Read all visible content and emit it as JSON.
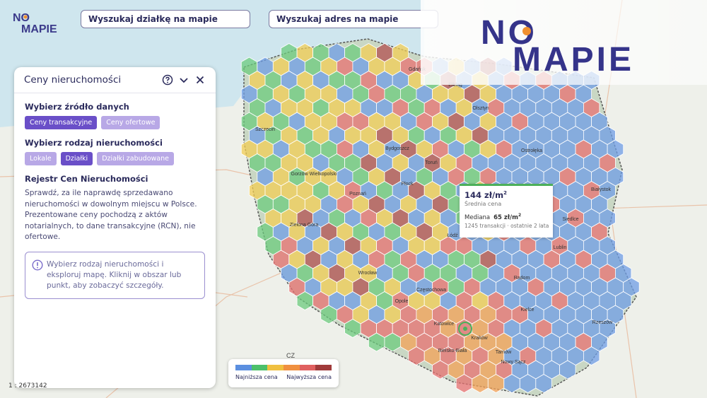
{
  "top_bar": {
    "search_plot_placeholder": "Wyszukaj działkę na mapie",
    "search_address_placeholder": "Wyszukaj adres na mapie"
  },
  "brand": {
    "logo_text_top": "NO",
    "logo_text_bottom": "MAPIE"
  },
  "panel": {
    "title": "Ceny nieruchomości",
    "source_title": "Wybierz źródło danych",
    "source_options": [
      {
        "label": "Ceny transakcyjne",
        "active": true
      },
      {
        "label": "Ceny ofertowe",
        "active": false
      }
    ],
    "type_title": "Wybierz rodzaj nieruchomości",
    "type_options": [
      {
        "label": "Lokale",
        "active": false
      },
      {
        "label": "Działki",
        "active": true
      },
      {
        "label": "Działki zabudowane",
        "active": false
      }
    ],
    "registry_title": "Rejestr Cen Nieruchomości",
    "registry_text": "Sprawdź, za ile naprawdę sprzedawano nieruchomości w dowolnym miejscu w Polsce. Prezentowane ceny pochodzą z aktów notarialnych, to dane transakcyjne (RCN), nie ofertowe.",
    "info_text": "Wybierz rodzaj nieruchomości i eksploruj mapę. Kliknij w obszar lub punkt, aby zobaczyć szczegóły."
  },
  "tooltip": {
    "price": "144 zł/m",
    "price_sup": "2",
    "price_label": "Średnia cena",
    "median_label": "Mediana",
    "median_value": "65 zł/m",
    "median_sup": "2",
    "transactions": "1245 transakcji · ostatnie 2 lata"
  },
  "legend": {
    "low_label": "Najniższa cena",
    "high_label": "Najwyższa cena",
    "colors": [
      "#5b8fe0",
      "#4cc06a",
      "#f0c040",
      "#f09040",
      "#e06060",
      "#a03a3a"
    ]
  },
  "map": {
    "scale_text": "1 : 2673142",
    "country_label": "CZ",
    "cities": [
      "Gdańsk",
      "Olsztyn",
      "Szczecin",
      "Bydgoszcz",
      "Toruń",
      "Ostrołęka",
      "Gorzów Wielkopolski",
      "Poznań",
      "Białystok",
      "Zielona Góra",
      "Łódź",
      "Lublin",
      "Wrocław",
      "Opole",
      "Kielce",
      "Częstochowa",
      "Katowice",
      "Kraków",
      "Rzeszów",
      "Tarnów",
      "Nowy Sącz",
      "Bielsko-Biała",
      "Elbląg",
      "Siedlce",
      "Radom",
      "Płock"
    ],
    "hex_colors": {
      "blue": "#6f9ee6",
      "green": "#6ccb7e",
      "yellow": "#f2cd55",
      "orange": "#f3a257",
      "red": "#e77272",
      "darkred": "#b25050"
    }
  }
}
